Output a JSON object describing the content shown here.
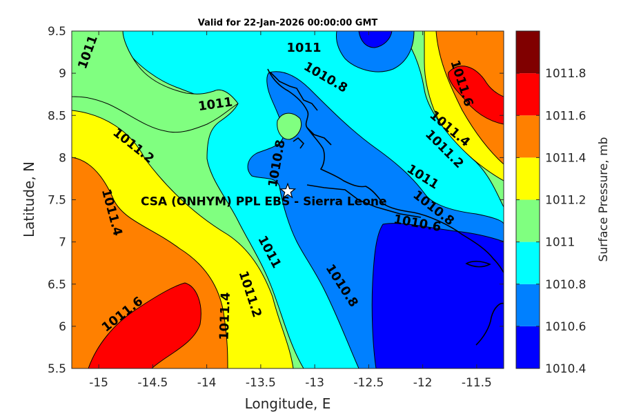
{
  "title": "Valid for 22-Jan-2026 00:00:00 GMT",
  "xlabel": "Longitude, E",
  "ylabel": "Latitude, N",
  "site_label": "CSA (ONHYM) PPL EBS  - Sierra Leone",
  "site": {
    "lon": -13.25,
    "lat": 7.6
  },
  "colorbar": {
    "label": "Surface Pressure, mb",
    "levels": [
      1010.4,
      1010.6,
      1010.8,
      1011,
      1011.2,
      1011.4,
      1011.6,
      1011.8
    ],
    "tick_labels": [
      "1010.4",
      "1010.6",
      "1010.8",
      "1011",
      "1011.2",
      "1011.4",
      "1011.6",
      "1011.8"
    ],
    "colors": [
      "#0000ff",
      "#0080ff",
      "#00ffff",
      "#80ff80",
      "#ffff00",
      "#ff8000",
      "#ff0000",
      "#800000"
    ]
  },
  "chart_data": {
    "type": "heatmap",
    "title": "Valid for 22-Jan-2026 00:00:00 GMT",
    "xlabel": "Longitude, E",
    "ylabel": "Latitude, N",
    "xlim": [
      -15.25,
      -11.25
    ],
    "ylim": [
      5.5,
      9.5
    ],
    "xticks": [
      -15,
      -14.5,
      -14,
      -13.5,
      -13,
      -12.5,
      -12,
      -11.5
    ],
    "xtick_labels": [
      "-15",
      "-14.5",
      "-14",
      "-13.5",
      "-13",
      "-12.5",
      "-12",
      "-11.5"
    ],
    "yticks": [
      5.5,
      6,
      6.5,
      7,
      7.5,
      8,
      8.5,
      9,
      9.5
    ],
    "ytick_labels": [
      "5.5",
      "6",
      "6.5",
      "7",
      "7.5",
      "8",
      "8.5",
      "9",
      "9.5"
    ],
    "grid": false,
    "variable": "Surface Pressure, mb",
    "contour_labels": [
      {
        "text": "1011",
        "lon": -15.1,
        "lat": 9.25,
        "rot": -70
      },
      {
        "text": "1011",
        "lon": -13.1,
        "lat": 9.3,
        "rot": 0
      },
      {
        "text": "1010.8",
        "lon": -12.9,
        "lat": 8.95,
        "rot": 30
      },
      {
        "text": "1011",
        "lon": -13.92,
        "lat": 8.63,
        "rot": -8
      },
      {
        "text": "1011.2",
        "lon": -14.68,
        "lat": 8.14,
        "rot": 38
      },
      {
        "text": "1010.8",
        "lon": -13.35,
        "lat": 7.93,
        "rot": -80
      },
      {
        "text": "1011.4",
        "lon": -14.88,
        "lat": 7.35,
        "rot": 75
      },
      {
        "text": "1011",
        "lon": -13.42,
        "lat": 6.88,
        "rot": 62
      },
      {
        "text": "1011.2",
        "lon": -13.6,
        "lat": 6.38,
        "rot": 72
      },
      {
        "text": "1010.8",
        "lon": -12.75,
        "lat": 6.48,
        "rot": 57
      },
      {
        "text": "1011.6",
        "lon": -14.78,
        "lat": 6.14,
        "rot": -38
      },
      {
        "text": "1011.4",
        "lon": -13.83,
        "lat": 6.12,
        "rot": -88
      },
      {
        "text": "1011.6",
        "lon": -11.64,
        "lat": 8.88,
        "rot": 72
      },
      {
        "text": "1011.4",
        "lon": -11.75,
        "lat": 8.34,
        "rot": 40
      },
      {
        "text": "1011.2",
        "lon": -11.8,
        "lat": 8.1,
        "rot": 45
      },
      {
        "text": "1011",
        "lon": -12.0,
        "lat": 7.77,
        "rot": 32
      },
      {
        "text": "1010.8",
        "lon": -11.9,
        "lat": 7.4,
        "rot": 38
      },
      {
        "text": "1010.6",
        "lon": -12.05,
        "lat": 7.22,
        "rot": 10
      }
    ]
  }
}
